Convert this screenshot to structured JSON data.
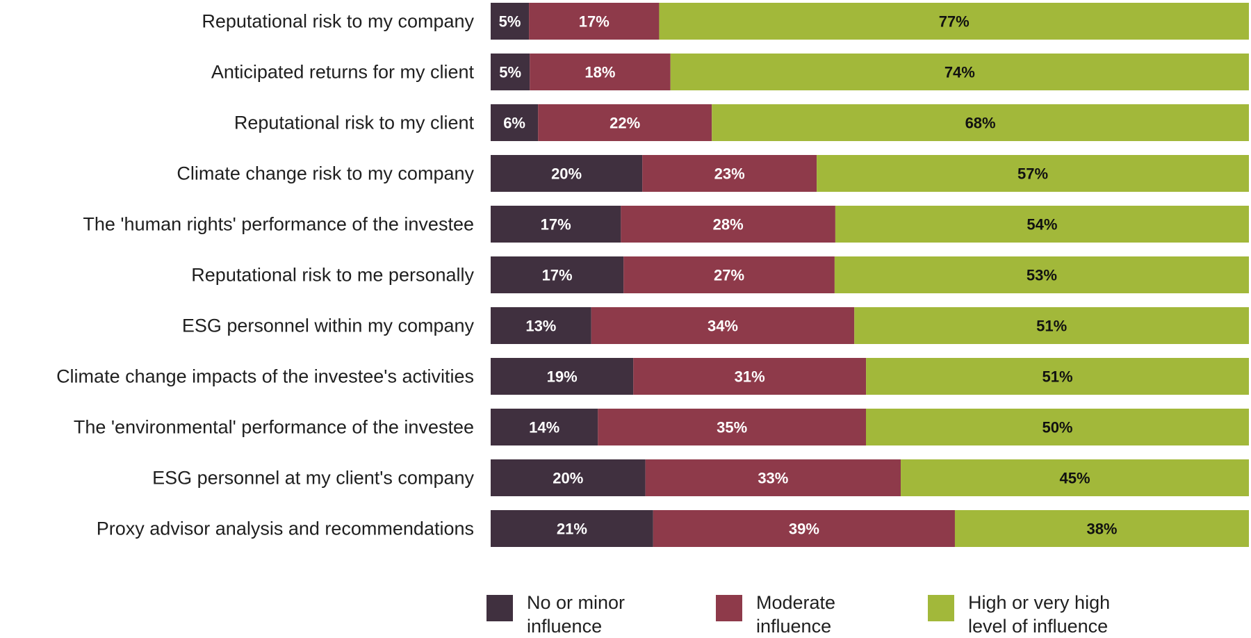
{
  "chart_data": {
    "type": "bar",
    "orientation": "horizontal",
    "stacked": true,
    "categories": [
      "Reputational risk to my company",
      "Anticipated returns for my client",
      "Reputational risk to my client",
      "Climate change risk to my company",
      "The 'human rights' performance of the investee",
      "Reputational risk to me personally",
      "ESG personnel within my company",
      "Climate change impacts of the investee's activities",
      "The 'environmental' performance of the investee",
      "ESG personnel at my client's company",
      "Proxy advisor analysis and recommendations"
    ],
    "series": [
      {
        "name": "No or minor influence",
        "color": "#40303f",
        "label_color": "#ffffff",
        "values": [
          5,
          5,
          6,
          20,
          17,
          17,
          13,
          19,
          14,
          20,
          21
        ]
      },
      {
        "name": "Moderate influence",
        "color": "#8e3a4a",
        "label_color": "#ffffff",
        "values": [
          17,
          18,
          22,
          23,
          28,
          27,
          34,
          31,
          35,
          33,
          39
        ]
      },
      {
        "name": "High or very high level of influence",
        "color": "#a2b83a",
        "label_color": "#111111",
        "values": [
          77,
          74,
          68,
          57,
          54,
          53,
          51,
          51,
          50,
          45,
          38
        ]
      }
    ],
    "value_suffix": "%",
    "grid": false,
    "legend_position": "bottom"
  },
  "legend": {
    "items": [
      {
        "text": "No or minor\ninfluence",
        "color": "#40303f"
      },
      {
        "text": "Moderate\ninfluence",
        "color": "#8e3a4a"
      },
      {
        "text": "High or very high\nlevel of influence",
        "color": "#a2b83a"
      }
    ]
  }
}
